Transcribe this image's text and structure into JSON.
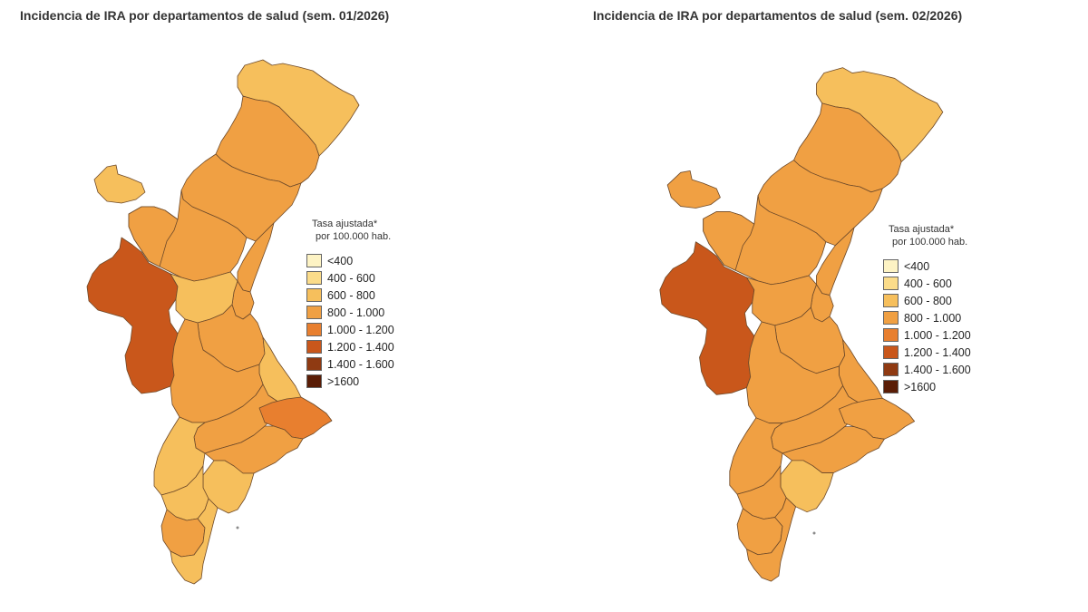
{
  "maps": [
    {
      "title": "Incidencia de IRA por departamentos de salud (sem. 01/2026)",
      "regions": [
        {
          "color": "#f6bf5c"
        },
        {
          "color": "#f0a043"
        },
        {
          "color": "#f0a043"
        },
        {
          "color": "#f6bf5c"
        },
        {
          "color": "#f0a043"
        },
        {
          "color": "#f0a043"
        },
        {
          "color": "#f0a043"
        },
        {
          "color": "#f0a043"
        },
        {
          "color": "#c9571b"
        },
        {
          "color": "#f6bf5c"
        },
        {
          "color": "#f0a043"
        },
        {
          "color": "#f6bf5c"
        },
        {
          "color": "#f0a043"
        },
        {
          "color": "#f0a043"
        },
        {
          "color": "#e87f2f"
        },
        {
          "color": "#f6bf5c"
        },
        {
          "color": "#f0a043"
        },
        {
          "color": "#f6bf5c"
        },
        {
          "color": "#f6bf5c"
        },
        {
          "color": "#f0a043"
        },
        {
          "color": "#f6bf5c"
        }
      ]
    },
    {
      "title": "Incidencia de IRA por departamentos de salud (sem. 02/2026)",
      "regions": [
        {
          "color": "#f6bf5c"
        },
        {
          "color": "#f0a043"
        },
        {
          "color": "#f0a043"
        },
        {
          "color": "#f0a043"
        },
        {
          "color": "#f0a043"
        },
        {
          "color": "#f0a043"
        },
        {
          "color": "#f0a043"
        },
        {
          "color": "#f0a043"
        },
        {
          "color": "#c9571b"
        },
        {
          "color": "#f0a043"
        },
        {
          "color": "#f0a043"
        },
        {
          "color": "#f0a043"
        },
        {
          "color": "#f0a043"
        },
        {
          "color": "#f0a043"
        },
        {
          "color": "#f0a043"
        },
        {
          "color": "#f0a043"
        },
        {
          "color": "#f0a043"
        },
        {
          "color": "#f6bf5c"
        },
        {
          "color": "#f0a043"
        },
        {
          "color": "#f0a043"
        },
        {
          "color": "#f0a043"
        }
      ]
    }
  ],
  "legend": {
    "title_line1": "Tasa ajustada*",
    "title_line2": "por 100.000 hab.",
    "items": [
      {
        "label": "<400",
        "color": "#fdf3c4"
      },
      {
        "label": "400 - 600",
        "color": "#fbdc8a"
      },
      {
        "label": "600 - 800",
        "color": "#f6bf5c"
      },
      {
        "label": "800 - 1.000",
        "color": "#f0a043"
      },
      {
        "label": "1.000 - 1.200",
        "color": "#e87f2f"
      },
      {
        "label": "1.200 - 1.400",
        "color": "#c9571b"
      },
      {
        "label": "1.400 - 1.600",
        "color": "#8f3a12"
      },
      {
        "label": ">1600",
        "color": "#5a1d06"
      }
    ]
  }
}
